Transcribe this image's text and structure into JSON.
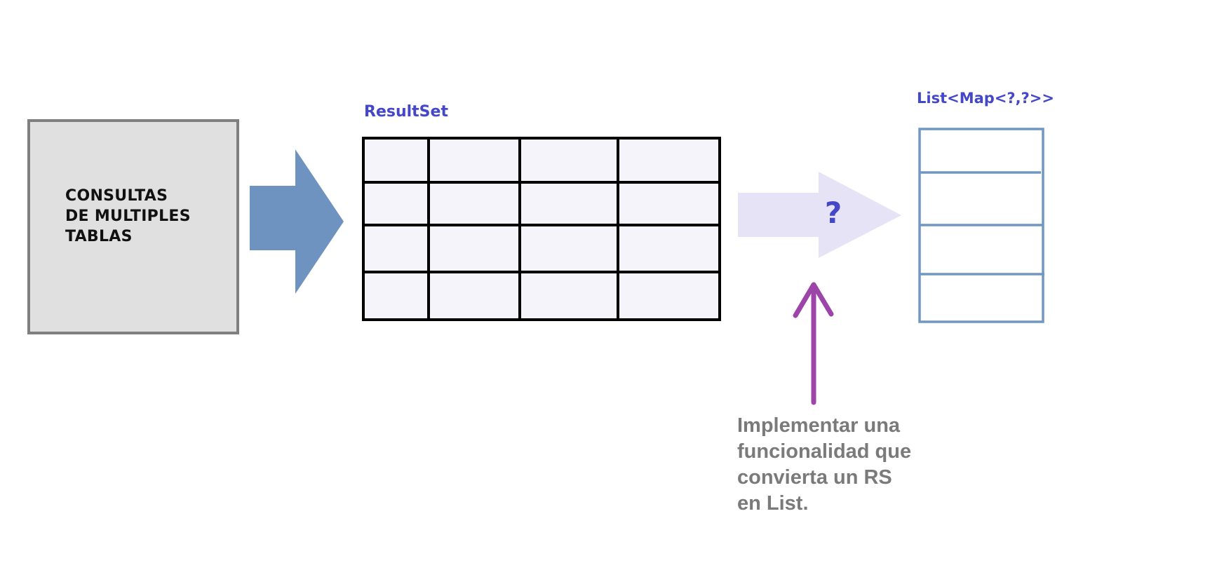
{
  "source": {
    "lines": [
      "CONSULTAS",
      "DE MULTIPLES",
      "TABLAS"
    ]
  },
  "resultset": {
    "label": "ResultSet",
    "rows": 4,
    "columns": 4
  },
  "list": {
    "label": "List<Map<?,?>>",
    "rows": 4
  },
  "conversion_arrow": {
    "label": "?"
  },
  "note": {
    "lines": [
      "Implementar una",
      "funcionalidad que",
      "convierta un RS",
      "en List."
    ]
  },
  "colors": {
    "source_fill": "#e0e0e0",
    "source_border": "#7f7f7f",
    "first_arrow": "#6f93c0",
    "table_fill": "#f4f4fa",
    "table_border": "#000000",
    "conversion_arrow": "#e5e3f5",
    "label_blue": "#4347c8",
    "list_border": "#7097c4",
    "pointer_arrow": "#9c44a8",
    "note_text": "#7a7a7a"
  }
}
